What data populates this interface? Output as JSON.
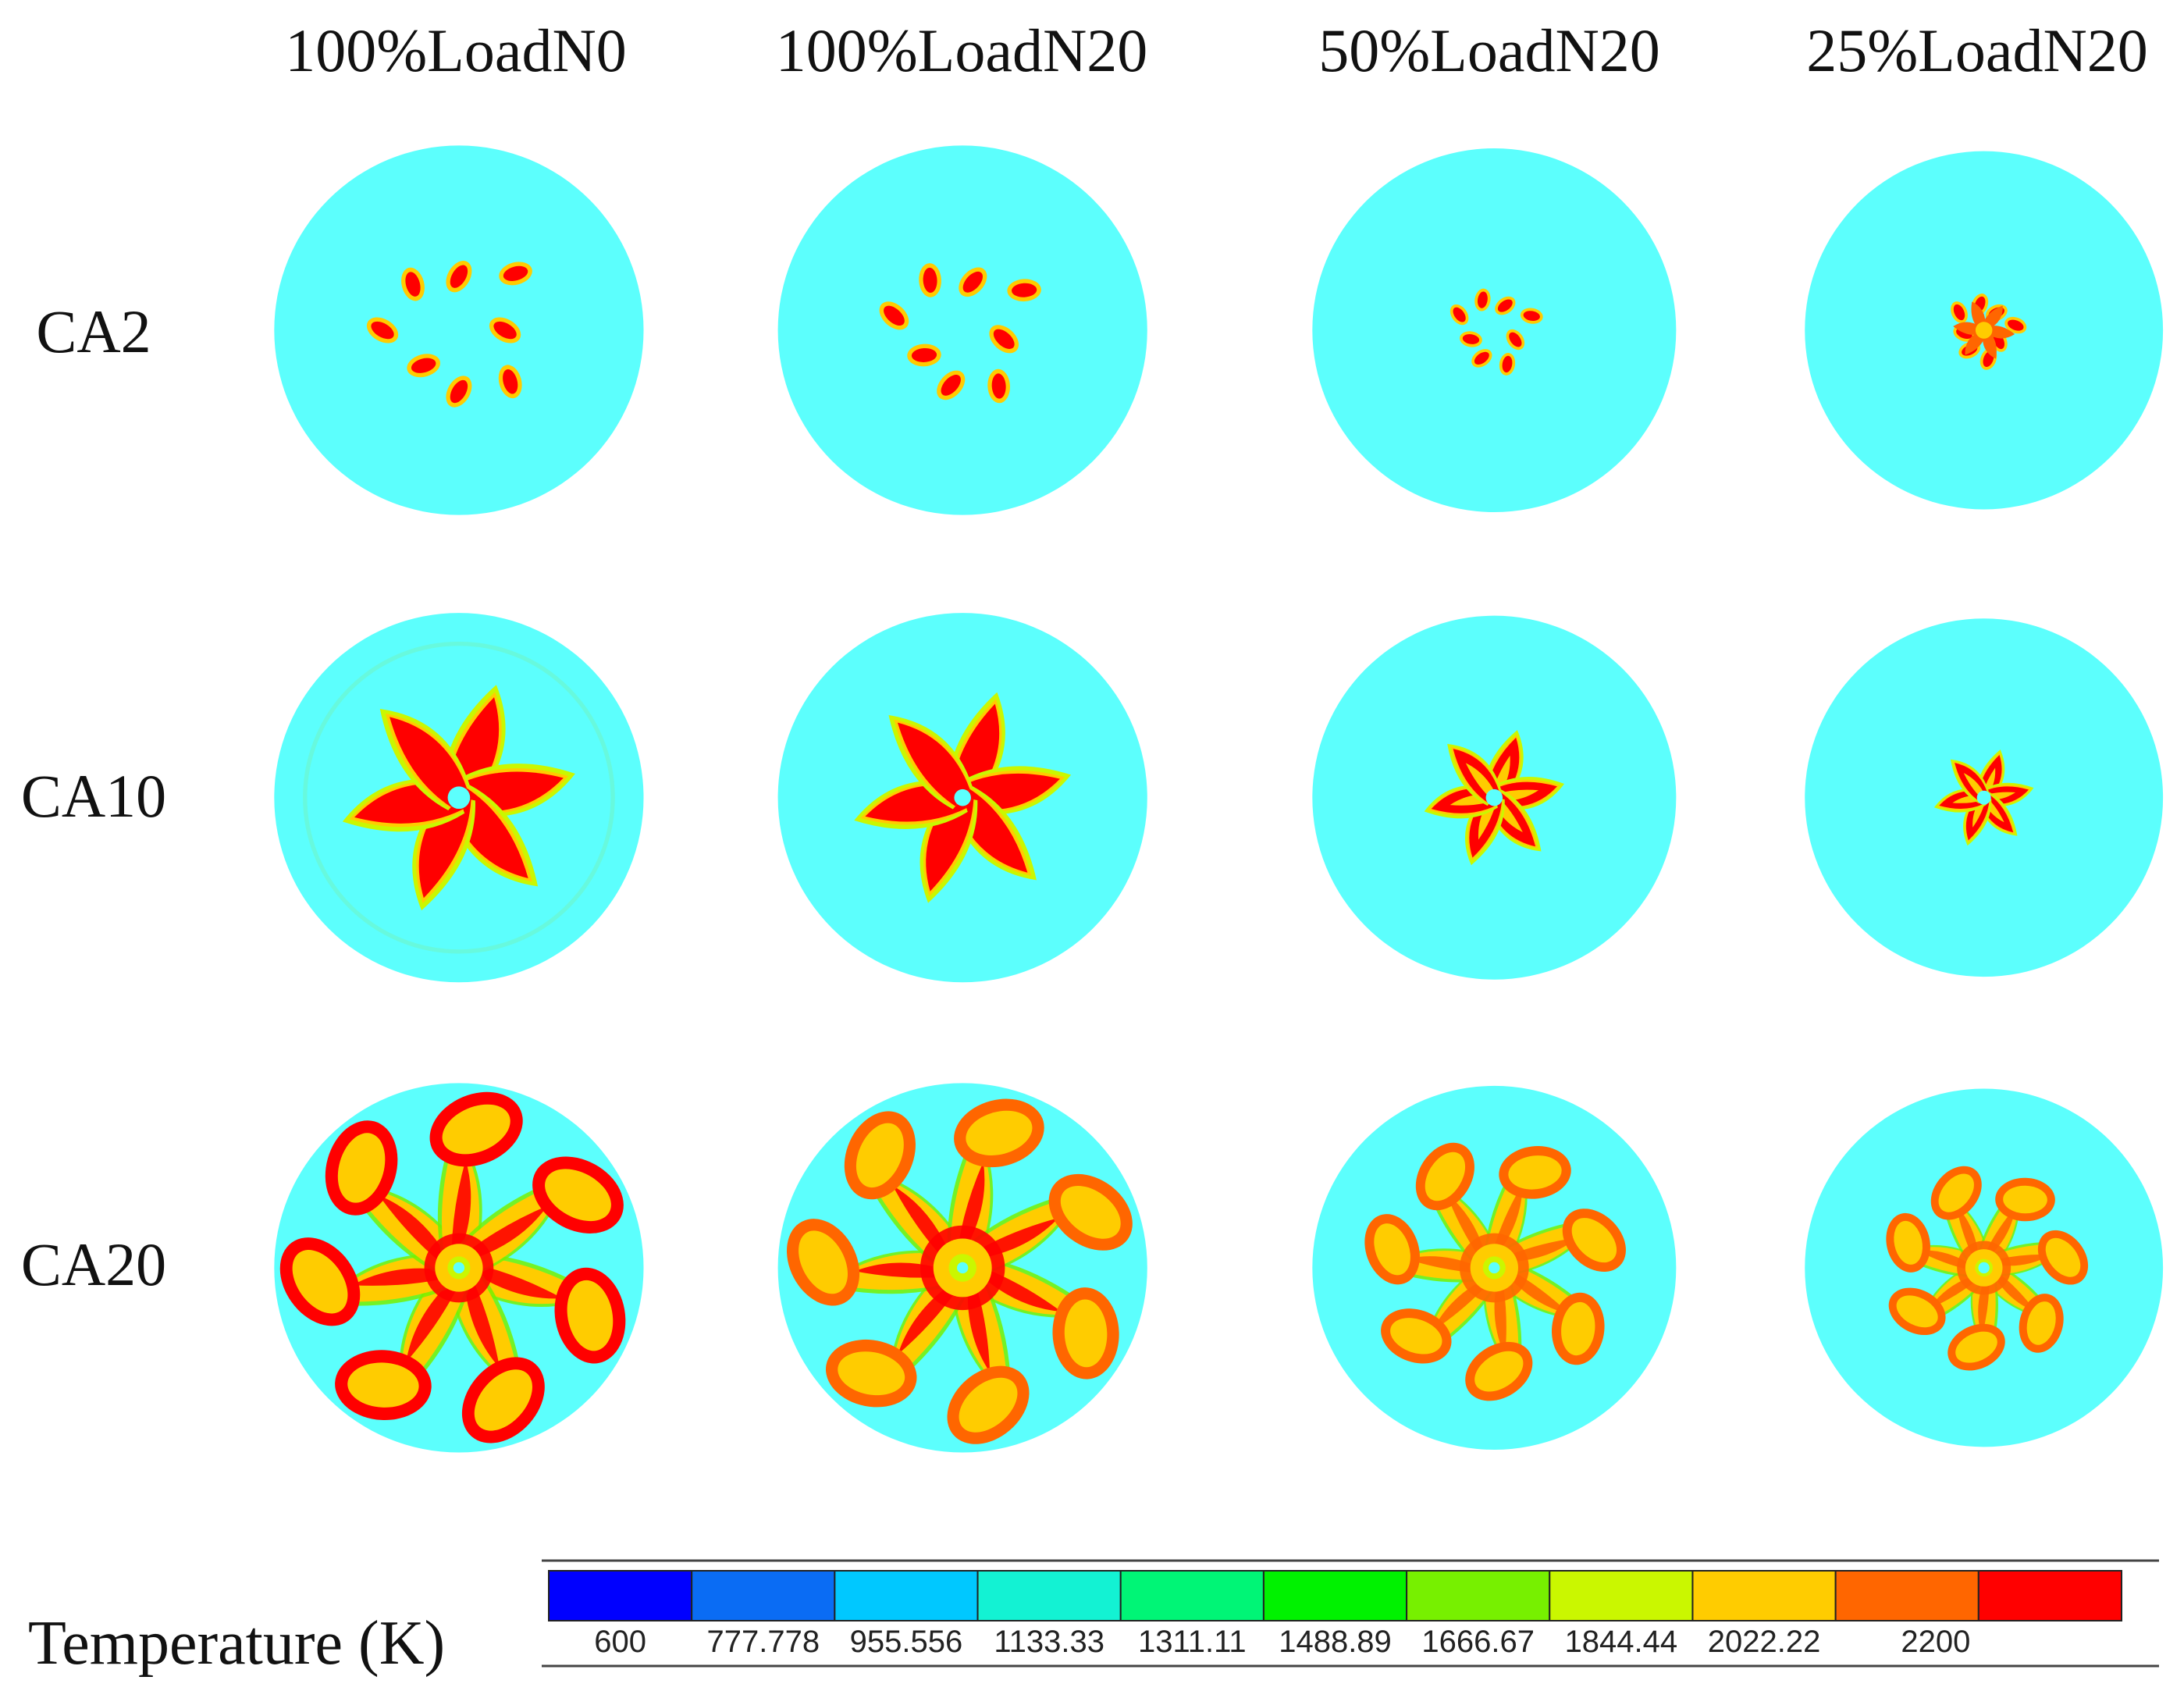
{
  "columns": [
    "100%LoadN0",
    "100%LoadN20",
    "50%LoadN20",
    "25%LoadN20"
  ],
  "rows": [
    "CA2",
    "CA10",
    "CA20"
  ],
  "legend": {
    "title": "Temperature (K)",
    "ticks": [
      "600",
      "777.778",
      "955.556",
      "1133.33",
      "1311.11",
      "1488.89",
      "1666.67",
      "1844.44",
      "2022.22",
      "2200"
    ],
    "colors": [
      "#0000ff",
      "#0a6cf4",
      "#00c8ff",
      "#13f2d3",
      "#00f576",
      "#00f200",
      "#77f000",
      "#caf700",
      "#ffcc00",
      "#ff6600",
      "#ff0000"
    ]
  },
  "background_color": "#5cfffd"
}
